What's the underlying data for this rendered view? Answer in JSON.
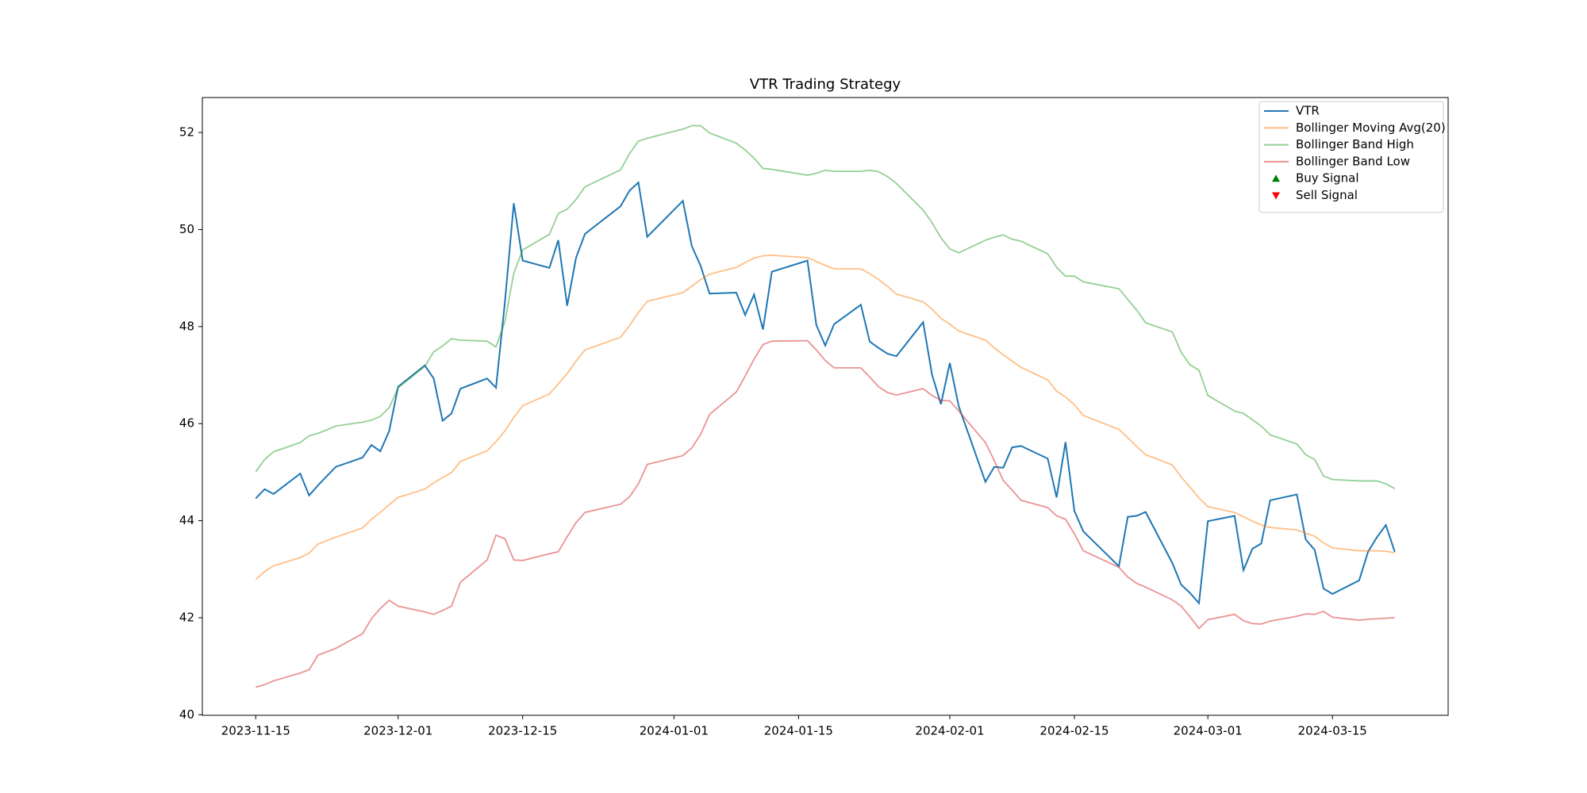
{
  "chart_data": {
    "type": "line",
    "title": "VTR Trading Strategy",
    "x": [
      "2023-11-15",
      "2023-11-16",
      "2023-11-17",
      "2023-11-20",
      "2023-11-21",
      "2023-11-22",
      "2023-11-24",
      "2023-11-27",
      "2023-11-28",
      "2023-11-29",
      "2023-11-30",
      "2023-12-01",
      "2023-12-04",
      "2023-12-05",
      "2023-12-06",
      "2023-12-07",
      "2023-12-08",
      "2023-12-11",
      "2023-12-12",
      "2023-12-13",
      "2023-12-14",
      "2023-12-15",
      "2023-12-18",
      "2023-12-19",
      "2023-12-20",
      "2023-12-21",
      "2023-12-22",
      "2023-12-26",
      "2023-12-27",
      "2023-12-28",
      "2023-12-29",
      "2024-01-02",
      "2024-01-03",
      "2024-01-04",
      "2024-01-05",
      "2024-01-08",
      "2024-01-09",
      "2024-01-10",
      "2024-01-11",
      "2024-01-12",
      "2024-01-16",
      "2024-01-17",
      "2024-01-18",
      "2024-01-19",
      "2024-01-22",
      "2024-01-23",
      "2024-01-24",
      "2024-01-25",
      "2024-01-26",
      "2024-01-29",
      "2024-01-30",
      "2024-01-31",
      "2024-02-01",
      "2024-02-02",
      "2024-02-05",
      "2024-02-06",
      "2024-02-07",
      "2024-02-08",
      "2024-02-09",
      "2024-02-12",
      "2024-02-13",
      "2024-02-14",
      "2024-02-15",
      "2024-02-16",
      "2024-02-20",
      "2024-02-21",
      "2024-02-22",
      "2024-02-23",
      "2024-02-26",
      "2024-02-27",
      "2024-02-28",
      "2024-02-29",
      "2024-03-01",
      "2024-03-04",
      "2024-03-05",
      "2024-03-06",
      "2024-03-07",
      "2024-03-08",
      "2024-03-11",
      "2024-03-12",
      "2024-03-13",
      "2024-03-14",
      "2024-03-15",
      "2024-03-18",
      "2024-03-19",
      "2024-03-20",
      "2024-03-21",
      "2024-03-22"
    ],
    "series": [
      {
        "name": "VTR",
        "color": "#1f77b4",
        "opacity": 1,
        "values": [
          44.46,
          44.65,
          44.55,
          44.97,
          44.52,
          44.73,
          45.11,
          45.3,
          45.56,
          45.43,
          45.85,
          46.76,
          47.2,
          46.93,
          46.06,
          46.21,
          46.72,
          46.93,
          46.74,
          48.5,
          50.54,
          49.36,
          49.21,
          49.78,
          48.43,
          49.42,
          49.91,
          50.48,
          50.8,
          50.97,
          49.85,
          50.59,
          49.66,
          49.25,
          48.68,
          48.7,
          48.24,
          48.66,
          47.94,
          49.13,
          49.36,
          48.03,
          47.61,
          48.05,
          48.45,
          47.69,
          47.56,
          47.44,
          47.39,
          48.09,
          47.01,
          46.4,
          47.25,
          46.36,
          44.8,
          45.11,
          45.09,
          45.51,
          45.54,
          45.28,
          44.48,
          45.62,
          44.2,
          43.78,
          43.06,
          44.08,
          44.1,
          44.18,
          43.13,
          42.68,
          42.51,
          42.3,
          43.99,
          44.1,
          42.98,
          43.42,
          43.53,
          44.42,
          44.54,
          43.61,
          43.4,
          42.6,
          42.49,
          42.77,
          43.36,
          43.66,
          43.91,
          43.36
        ]
      },
      {
        "name": "Bollinger Moving Avg(20)",
        "color": "#ff7f0e",
        "opacity": 0.5,
        "values": [
          42.79,
          42.95,
          43.07,
          43.24,
          43.33,
          43.52,
          43.66,
          43.85,
          44.03,
          44.17,
          44.33,
          44.48,
          44.65,
          44.78,
          44.89,
          44.99,
          45.22,
          45.44,
          45.63,
          45.85,
          46.13,
          46.37,
          46.61,
          46.82,
          47.03,
          47.29,
          47.52,
          47.78,
          48.02,
          48.29,
          48.52,
          48.7,
          48.83,
          48.97,
          49.08,
          49.22,
          49.32,
          49.41,
          49.46,
          49.47,
          49.42,
          49.34,
          49.26,
          49.19,
          49.19,
          49.09,
          48.97,
          48.83,
          48.67,
          48.51,
          48.36,
          48.17,
          48.05,
          47.91,
          47.72,
          47.56,
          47.42,
          47.29,
          47.16,
          46.9,
          46.67,
          46.55,
          46.39,
          46.17,
          45.88,
          45.71,
          45.53,
          45.36,
          45.15,
          44.9,
          44.69,
          44.47,
          44.29,
          44.17,
          44.08,
          43.99,
          43.91,
          43.86,
          43.81,
          43.74,
          43.68,
          43.54,
          43.44,
          43.38,
          43.38,
          43.38,
          43.37,
          43.34
        ]
      },
      {
        "name": "Bollinger Band High",
        "color": "#2ca02c",
        "opacity": 0.5,
        "values": [
          45.01,
          45.26,
          45.42,
          45.61,
          45.75,
          45.8,
          45.95,
          46.03,
          46.07,
          46.15,
          46.33,
          46.74,
          47.18,
          47.48,
          47.6,
          47.75,
          47.72,
          47.7,
          47.58,
          48.1,
          49.1,
          49.58,
          49.9,
          50.33,
          50.42,
          50.62,
          50.88,
          51.23,
          51.56,
          51.82,
          51.88,
          52.07,
          52.14,
          52.14,
          51.99,
          51.78,
          51.64,
          51.47,
          51.26,
          51.24,
          51.12,
          51.16,
          51.22,
          51.2,
          51.2,
          51.22,
          51.19,
          51.09,
          50.95,
          50.4,
          50.14,
          49.83,
          49.6,
          49.52,
          49.78,
          49.84,
          49.89,
          49.8,
          49.76,
          49.5,
          49.22,
          49.04,
          49.04,
          48.92,
          48.78,
          48.56,
          48.34,
          48.08,
          47.89,
          47.47,
          47.21,
          47.1,
          46.58,
          46.26,
          46.21,
          46.08,
          45.95,
          45.77,
          45.58,
          45.36,
          45.26,
          44.92,
          44.85,
          44.82,
          44.82,
          44.82,
          44.76,
          44.66
        ]
      },
      {
        "name": "Bollinger Band Low",
        "color": "#d62728",
        "opacity": 0.5,
        "values": [
          40.57,
          40.62,
          40.7,
          40.86,
          40.93,
          41.23,
          41.37,
          41.67,
          41.98,
          42.19,
          42.36,
          42.24,
          42.12,
          42.07,
          42.15,
          42.24,
          42.73,
          43.19,
          43.7,
          43.63,
          43.19,
          43.18,
          43.32,
          43.36,
          43.67,
          43.96,
          44.17,
          44.34,
          44.49,
          44.76,
          45.16,
          45.34,
          45.5,
          45.78,
          46.19,
          46.65,
          46.98,
          47.33,
          47.63,
          47.7,
          47.71,
          47.52,
          47.3,
          47.15,
          47.15,
          46.96,
          46.76,
          46.64,
          46.59,
          46.72,
          46.58,
          46.48,
          46.47,
          46.26,
          45.61,
          45.24,
          44.83,
          44.63,
          44.42,
          44.27,
          44.1,
          44.03,
          43.73,
          43.38,
          43.04,
          42.84,
          42.71,
          42.63,
          42.37,
          42.24,
          42.02,
          41.78,
          41.96,
          42.07,
          41.94,
          41.88,
          41.87,
          41.93,
          42.03,
          42.08,
          42.07,
          42.13,
          42.01,
          41.95,
          41.97,
          41.98,
          41.99,
          42.0
        ]
      }
    ],
    "markers": [
      {
        "name": "Buy Signal",
        "color": "green",
        "marker": "^"
      },
      {
        "name": "Sell Signal",
        "color": "red",
        "marker": "v"
      }
    ],
    "xlim": [
      "2023-11-09",
      "2024-03-28"
    ],
    "xticks": [
      "2023-11-15",
      "2023-12-01",
      "2023-12-15",
      "2024-01-01",
      "2024-01-15",
      "2024-02-01",
      "2024-02-15",
      "2024-03-01",
      "2024-03-15"
    ],
    "ylim": [
      39.99,
      52.72
    ],
    "yticks": [
      40,
      42,
      44,
      46,
      48,
      50,
      52
    ],
    "legend": "upper right"
  }
}
